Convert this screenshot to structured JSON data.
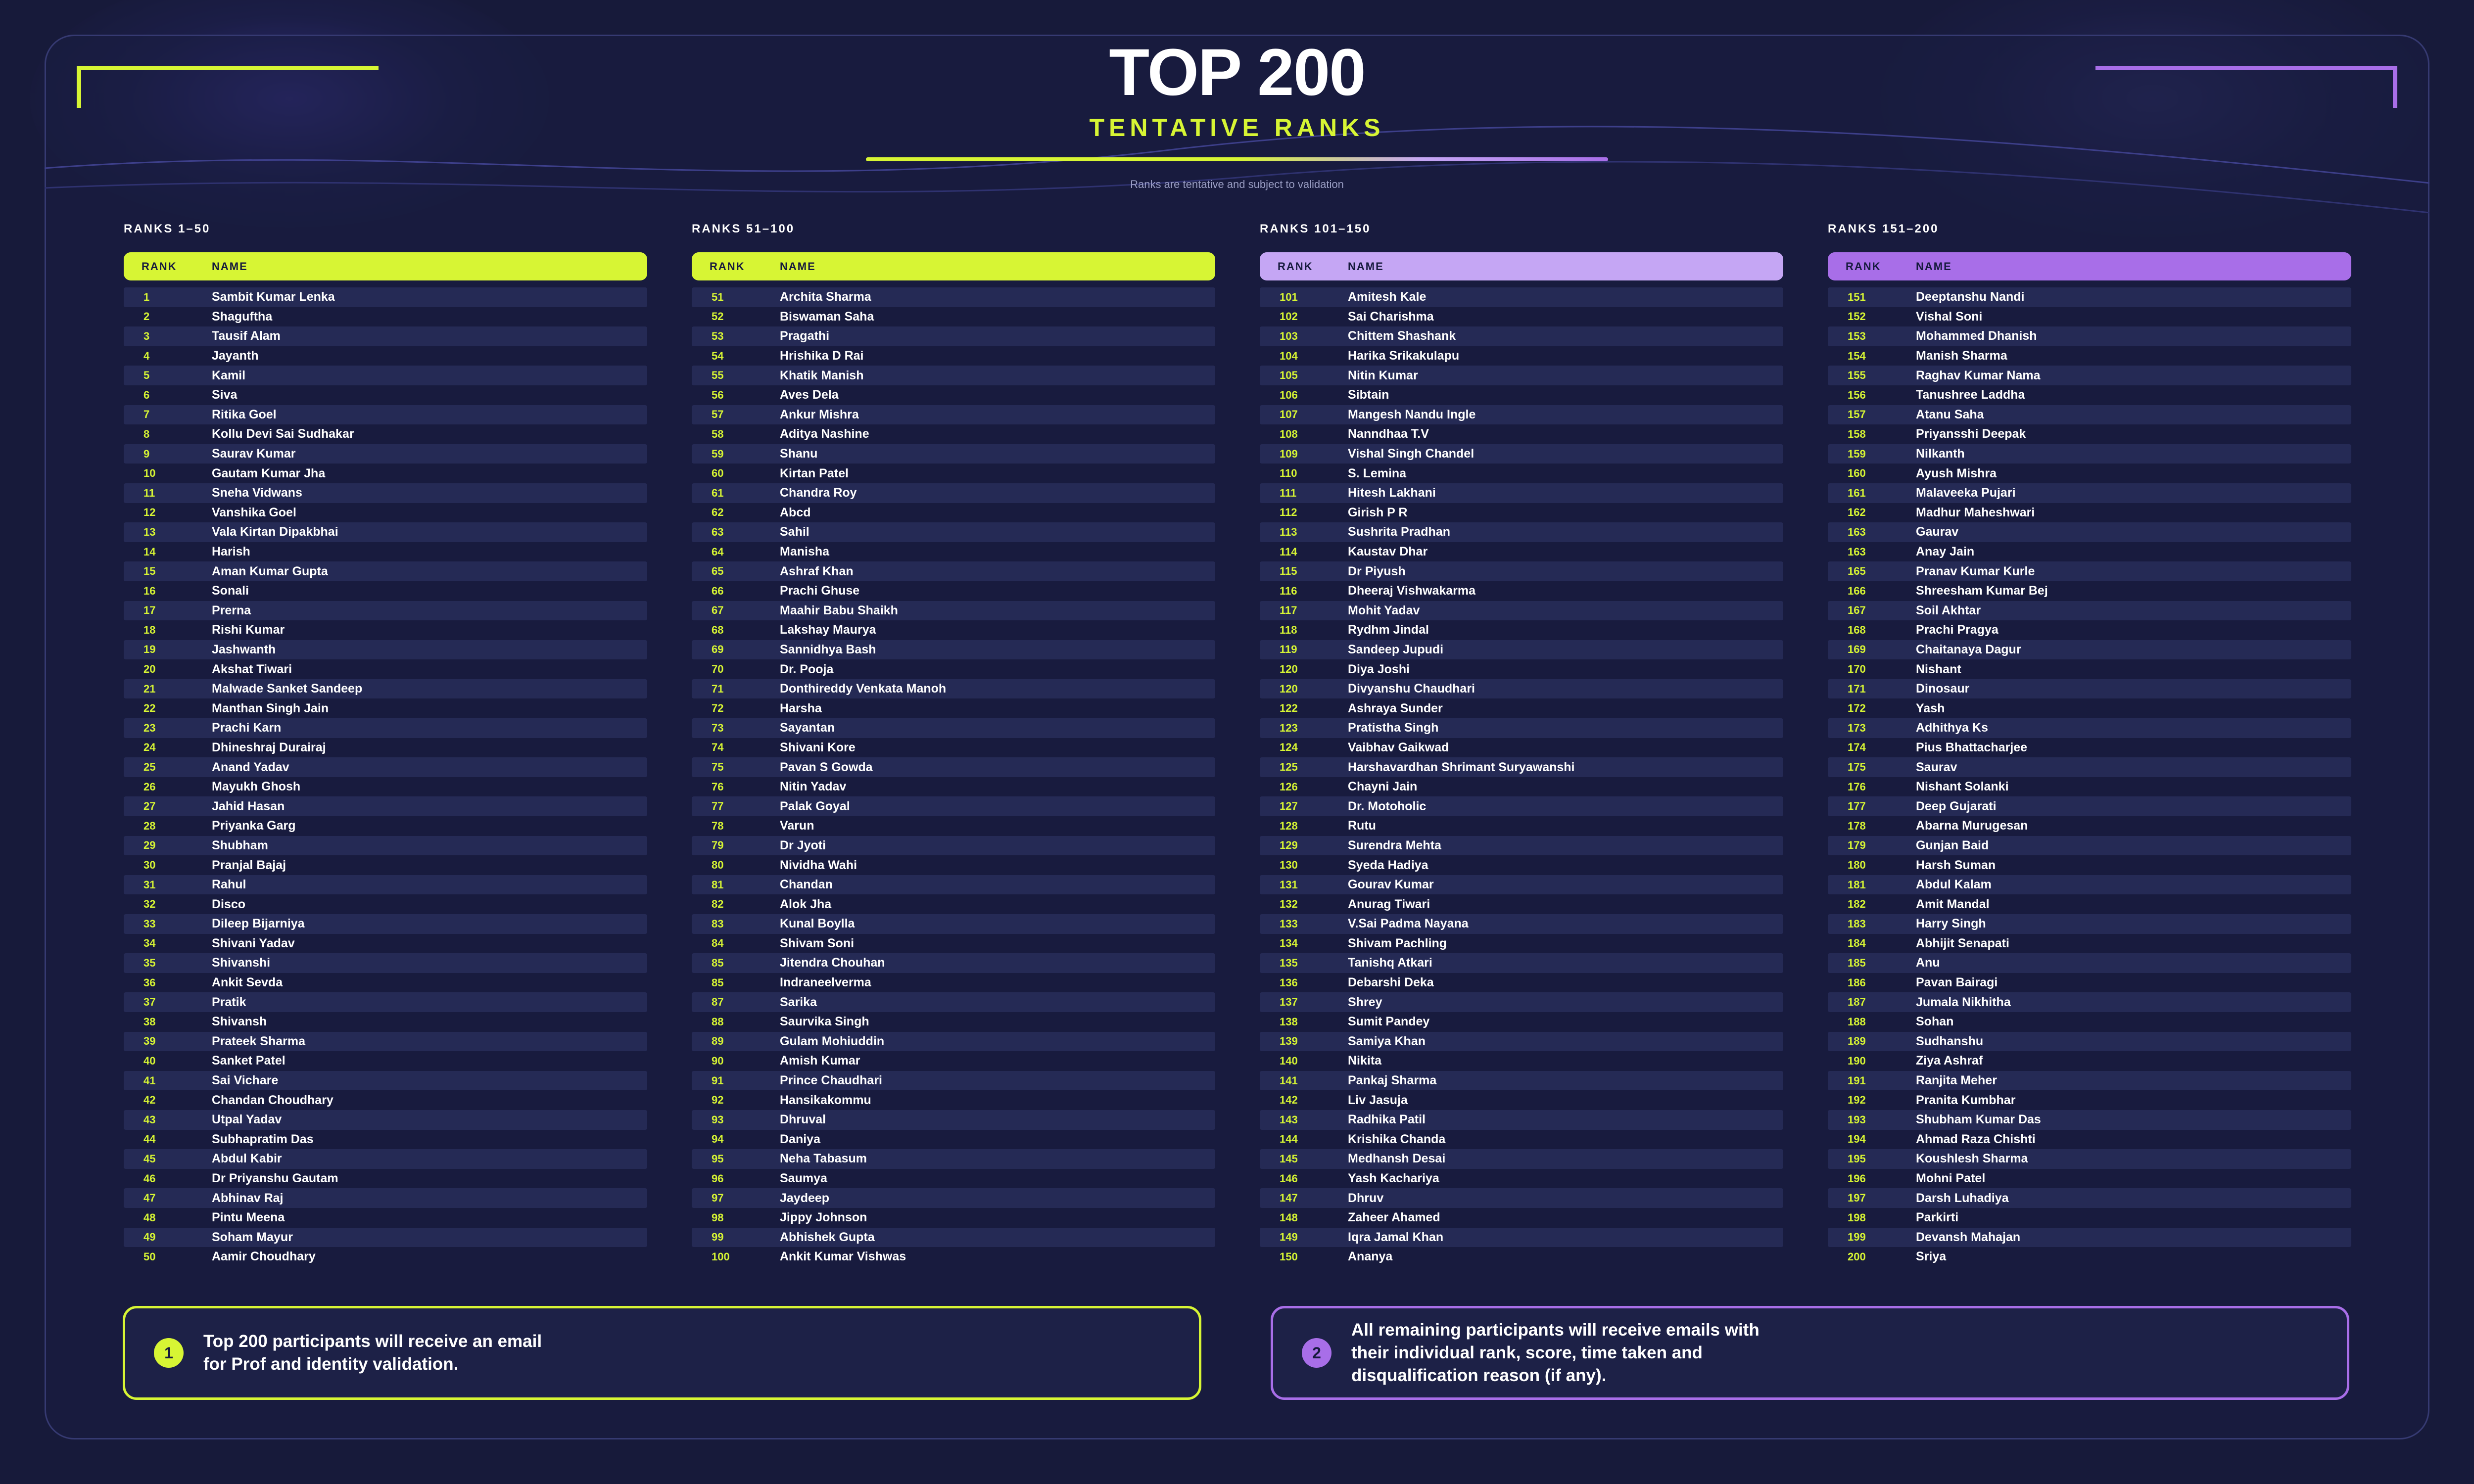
{
  "header": {
    "title": "TOP 200",
    "subtitle": "TENTATIVE RANKS",
    "note": "Ranks are tentative and subject to validation"
  },
  "colors": {
    "lime": "#d7f534",
    "lavender": "#c5a6f4",
    "purple": "#a86ee8",
    "background": "#171a3a"
  },
  "columns": [
    {
      "label": "RANKS 1–50",
      "rank_header": "RANK",
      "name_header": "NAME",
      "header_color": "#d7f534",
      "rows": [
        {
          "rank": "1",
          "name": "Sambit Kumar Lenka"
        },
        {
          "rank": "2",
          "name": "Shaguftha"
        },
        {
          "rank": "3",
          "name": "Tausif Alam"
        },
        {
          "rank": "4",
          "name": "Jayanth"
        },
        {
          "rank": "5",
          "name": "Kamil"
        },
        {
          "rank": "6",
          "name": "Siva"
        },
        {
          "rank": "7",
          "name": "Ritika Goel"
        },
        {
          "rank": "8",
          "name": "Kollu Devi Sai Sudhakar"
        },
        {
          "rank": "9",
          "name": "Saurav Kumar"
        },
        {
          "rank": "10",
          "name": "Gautam Kumar Jha"
        },
        {
          "rank": "11",
          "name": "Sneha Vidwans"
        },
        {
          "rank": "12",
          "name": "Vanshika Goel"
        },
        {
          "rank": "13",
          "name": "Vala Kirtan Dipakbhai"
        },
        {
          "rank": "14",
          "name": "Harish"
        },
        {
          "rank": "15",
          "name": "Aman Kumar Gupta"
        },
        {
          "rank": "16",
          "name": "Sonali"
        },
        {
          "rank": "17",
          "name": "Prerna"
        },
        {
          "rank": "18",
          "name": "Rishi Kumar"
        },
        {
          "rank": "19",
          "name": "Jashwanth"
        },
        {
          "rank": "20",
          "name": "Akshat Tiwari"
        },
        {
          "rank": "21",
          "name": "Malwade Sanket Sandeep"
        },
        {
          "rank": "22",
          "name": "Manthan Singh Jain"
        },
        {
          "rank": "23",
          "name": "Prachi Karn"
        },
        {
          "rank": "24",
          "name": "Dhineshraj Durairaj"
        },
        {
          "rank": "25",
          "name": "Anand Yadav"
        },
        {
          "rank": "26",
          "name": "Mayukh Ghosh"
        },
        {
          "rank": "27",
          "name": "Jahid Hasan"
        },
        {
          "rank": "28",
          "name": "Priyanka Garg"
        },
        {
          "rank": "29",
          "name": "Shubham"
        },
        {
          "rank": "30",
          "name": "Pranjal Bajaj"
        },
        {
          "rank": "31",
          "name": "Rahul"
        },
        {
          "rank": "32",
          "name": "Disco"
        },
        {
          "rank": "33",
          "name": "Dileep Bijarniya"
        },
        {
          "rank": "34",
          "name": "Shivani Yadav"
        },
        {
          "rank": "35",
          "name": "Shivanshi"
        },
        {
          "rank": "36",
          "name": "Ankit Sevda"
        },
        {
          "rank": "37",
          "name": "Pratik"
        },
        {
          "rank": "38",
          "name": "Shivansh"
        },
        {
          "rank": "39",
          "name": "Prateek Sharma"
        },
        {
          "rank": "40",
          "name": "Sanket Patel"
        },
        {
          "rank": "41",
          "name": "Sai Vichare"
        },
        {
          "rank": "42",
          "name": "Chandan Choudhary"
        },
        {
          "rank": "43",
          "name": "Utpal Yadav"
        },
        {
          "rank": "44",
          "name": "Subhapratim Das"
        },
        {
          "rank": "45",
          "name": "Abdul Kabir"
        },
        {
          "rank": "46",
          "name": "Dr Priyanshu Gautam"
        },
        {
          "rank": "47",
          "name": "Abhinav Raj"
        },
        {
          "rank": "48",
          "name": "Pintu Meena"
        },
        {
          "rank": "49",
          "name": "Soham Mayur"
        },
        {
          "rank": "50",
          "name": "Aamir Choudhary"
        }
      ]
    },
    {
      "label": "RANKS 51–100",
      "rank_header": "RANK",
      "name_header": "NAME",
      "header_color": "#d7f534",
      "rows": [
        {
          "rank": "51",
          "name": "Archita Sharma"
        },
        {
          "rank": "52",
          "name": "Biswaman Saha"
        },
        {
          "rank": "53",
          "name": "Pragathi"
        },
        {
          "rank": "54",
          "name": "Hrishika D Rai"
        },
        {
          "rank": "55",
          "name": "Khatik Manish"
        },
        {
          "rank": "56",
          "name": "Aves Dela"
        },
        {
          "rank": "57",
          "name": "Ankur Mishra"
        },
        {
          "rank": "58",
          "name": "Aditya Nashine"
        },
        {
          "rank": "59",
          "name": "Shanu"
        },
        {
          "rank": "60",
          "name": "Kirtan Patel"
        },
        {
          "rank": "61",
          "name": "Chandra Roy"
        },
        {
          "rank": "62",
          "name": "Abcd"
        },
        {
          "rank": "63",
          "name": "Sahil"
        },
        {
          "rank": "64",
          "name": "Manisha"
        },
        {
          "rank": "65",
          "name": "Ashraf Khan"
        },
        {
          "rank": "66",
          "name": "Prachi Ghuse"
        },
        {
          "rank": "67",
          "name": "Maahir Babu Shaikh"
        },
        {
          "rank": "68",
          "name": "Lakshay Maurya"
        },
        {
          "rank": "69",
          "name": "Sannidhya Bash"
        },
        {
          "rank": "70",
          "name": "Dr. Pooja"
        },
        {
          "rank": "71",
          "name": "Donthireddy Venkata Manoh"
        },
        {
          "rank": "72",
          "name": "Harsha"
        },
        {
          "rank": "73",
          "name": "Sayantan"
        },
        {
          "rank": "74",
          "name": "Shivani Kore"
        },
        {
          "rank": "75",
          "name": "Pavan S Gowda"
        },
        {
          "rank": "76",
          "name": "Nitin Yadav"
        },
        {
          "rank": "77",
          "name": "Palak Goyal"
        },
        {
          "rank": "78",
          "name": "Varun"
        },
        {
          "rank": "79",
          "name": "Dr Jyoti"
        },
        {
          "rank": "80",
          "name": "Nividha Wahi"
        },
        {
          "rank": "81",
          "name": "Chandan"
        },
        {
          "rank": "82",
          "name": "Alok Jha"
        },
        {
          "rank": "83",
          "name": "Kunal Boylla"
        },
        {
          "rank": "84",
          "name": "Shivam Soni"
        },
        {
          "rank": "85",
          "name": "Jitendra Chouhan"
        },
        {
          "rank": "85",
          "name": "Indraneelverma"
        },
        {
          "rank": "87",
          "name": "Sarika"
        },
        {
          "rank": "88",
          "name": "Saurvika Singh"
        },
        {
          "rank": "89",
          "name": "Gulam Mohiuddin"
        },
        {
          "rank": "90",
          "name": "Amish Kumar"
        },
        {
          "rank": "91",
          "name": "Prince Chaudhari"
        },
        {
          "rank": "92",
          "name": "Hansikakommu"
        },
        {
          "rank": "93",
          "name": "Dhruval"
        },
        {
          "rank": "94",
          "name": "Daniya"
        },
        {
          "rank": "95",
          "name": "Neha Tabasum"
        },
        {
          "rank": "96",
          "name": "Saumya"
        },
        {
          "rank": "97",
          "name": "Jaydeep"
        },
        {
          "rank": "98",
          "name": "Jippy Johnson"
        },
        {
          "rank": "99",
          "name": "Abhishek Gupta"
        },
        {
          "rank": "100",
          "name": "Ankit Kumar Vishwas"
        }
      ]
    },
    {
      "label": "RANKS 101–150",
      "rank_header": "RANK",
      "name_header": "NAME",
      "header_color": "#c5a6f4",
      "rows": [
        {
          "rank": "101",
          "name": "Amitesh Kale"
        },
        {
          "rank": "102",
          "name": "Sai Charishma"
        },
        {
          "rank": "103",
          "name": "Chittem Shashank"
        },
        {
          "rank": "104",
          "name": "Harika Srikakulapu"
        },
        {
          "rank": "105",
          "name": "Nitin Kumar"
        },
        {
          "rank": "106",
          "name": "Sibtain"
        },
        {
          "rank": "107",
          "name": "Mangesh Nandu Ingle"
        },
        {
          "rank": "108",
          "name": "Nanndhaa T.V"
        },
        {
          "rank": "109",
          "name": "Vishal Singh Chandel"
        },
        {
          "rank": "110",
          "name": "S. Lemina"
        },
        {
          "rank": "111",
          "name": "Hitesh Lakhani"
        },
        {
          "rank": "112",
          "name": "Girish P R"
        },
        {
          "rank": "113",
          "name": "Sushrita Pradhan"
        },
        {
          "rank": "114",
          "name": "Kaustav Dhar"
        },
        {
          "rank": "115",
          "name": "Dr Piyush"
        },
        {
          "rank": "116",
          "name": "Dheeraj Vishwakarma"
        },
        {
          "rank": "117",
          "name": "Mohit Yadav"
        },
        {
          "rank": "118",
          "name": "Rydhm Jindal"
        },
        {
          "rank": "119",
          "name": "Sandeep Jupudi"
        },
        {
          "rank": "120",
          "name": "Diya Joshi"
        },
        {
          "rank": "120",
          "name": "Divyanshu Chaudhari"
        },
        {
          "rank": "122",
          "name": "Ashraya Sunder"
        },
        {
          "rank": "123",
          "name": "Pratistha Singh"
        },
        {
          "rank": "124",
          "name": "Vaibhav Gaikwad"
        },
        {
          "rank": "125",
          "name": "Harshavardhan Shrimant Suryawanshi"
        },
        {
          "rank": "126",
          "name": "Chayni Jain"
        },
        {
          "rank": "127",
          "name": "Dr. Motoholic"
        },
        {
          "rank": "128",
          "name": "Rutu"
        },
        {
          "rank": "129",
          "name": "Surendra Mehta"
        },
        {
          "rank": "130",
          "name": "Syeda Hadiya"
        },
        {
          "rank": "131",
          "name": "Gourav Kumar"
        },
        {
          "rank": "132",
          "name": "Anurag Tiwari"
        },
        {
          "rank": "133",
          "name": "V.Sai Padma Nayana"
        },
        {
          "rank": "134",
          "name": "Shivam Pachling"
        },
        {
          "rank": "135",
          "name": "Tanishq Atkari"
        },
        {
          "rank": "136",
          "name": "Debarshi Deka"
        },
        {
          "rank": "137",
          "name": "Shrey"
        },
        {
          "rank": "138",
          "name": "Sumit Pandey"
        },
        {
          "rank": "139",
          "name": "Samiya Khan"
        },
        {
          "rank": "140",
          "name": "Nikita"
        },
        {
          "rank": "141",
          "name": "Pankaj Sharma"
        },
        {
          "rank": "142",
          "name": "Liv Jasuja"
        },
        {
          "rank": "143",
          "name": "Radhika Patil"
        },
        {
          "rank": "144",
          "name": "Krishika Chanda"
        },
        {
          "rank": "145",
          "name": "Medhansh Desai"
        },
        {
          "rank": "146",
          "name": "Yash Kachariya"
        },
        {
          "rank": "147",
          "name": "Dhruv"
        },
        {
          "rank": "148",
          "name": "Zaheer Ahamed"
        },
        {
          "rank": "149",
          "name": "Iqra Jamal Khan"
        },
        {
          "rank": "150",
          "name": "Ananya"
        }
      ]
    },
    {
      "label": "RANKS 151–200",
      "rank_header": "RANK",
      "name_header": "NAME",
      "header_color": "#a86ee8",
      "rows": [
        {
          "rank": "151",
          "name": "Deeptanshu Nandi"
        },
        {
          "rank": "152",
          "name": "Vishal Soni"
        },
        {
          "rank": "153",
          "name": "Mohammed Dhanish"
        },
        {
          "rank": "154",
          "name": "Manish Sharma"
        },
        {
          "rank": "155",
          "name": "Raghav Kumar Nama"
        },
        {
          "rank": "156",
          "name": "Tanushree Laddha"
        },
        {
          "rank": "157",
          "name": "Atanu Saha"
        },
        {
          "rank": "158",
          "name": "Priyansshi Deepak"
        },
        {
          "rank": "159",
          "name": "Nilkanth"
        },
        {
          "rank": "160",
          "name": "Ayush Mishra"
        },
        {
          "rank": "161",
          "name": "Malaveeka Pujari"
        },
        {
          "rank": "162",
          "name": "Madhur Maheshwari"
        },
        {
          "rank": "163",
          "name": "Gaurav"
        },
        {
          "rank": "163",
          "name": "Anay Jain"
        },
        {
          "rank": "165",
          "name": "Pranav Kumar Kurle"
        },
        {
          "rank": "166",
          "name": "Shreesham Kumar Bej"
        },
        {
          "rank": "167",
          "name": "Soil Akhtar"
        },
        {
          "rank": "168",
          "name": "Prachi Pragya"
        },
        {
          "rank": "169",
          "name": "Chaitanaya Dagur"
        },
        {
          "rank": "170",
          "name": "Nishant"
        },
        {
          "rank": "171",
          "name": "Dinosaur"
        },
        {
          "rank": "172",
          "name": "Yash"
        },
        {
          "rank": "173",
          "name": "Adhithya Ks"
        },
        {
          "rank": "174",
          "name": "Pius Bhattacharjee"
        },
        {
          "rank": "175",
          "name": "Saurav"
        },
        {
          "rank": "176",
          "name": "Nishant Solanki"
        },
        {
          "rank": "177",
          "name": "Deep Gujarati"
        },
        {
          "rank": "178",
          "name": "Abarna Murugesan"
        },
        {
          "rank": "179",
          "name": "Gunjan Baid"
        },
        {
          "rank": "180",
          "name": "Harsh Suman"
        },
        {
          "rank": "181",
          "name": "Abdul Kalam"
        },
        {
          "rank": "182",
          "name": "Amit Mandal"
        },
        {
          "rank": "183",
          "name": "Harry Singh"
        },
        {
          "rank": "184",
          "name": "Abhijit Senapati"
        },
        {
          "rank": "185",
          "name": "Anu"
        },
        {
          "rank": "186",
          "name": "Pavan Bairagi"
        },
        {
          "rank": "187",
          "name": "Jumala Nikhitha"
        },
        {
          "rank": "188",
          "name": "Sohan"
        },
        {
          "rank": "189",
          "name": "Sudhanshu"
        },
        {
          "rank": "190",
          "name": "Ziya Ashraf"
        },
        {
          "rank": "191",
          "name": "Ranjita Meher"
        },
        {
          "rank": "192",
          "name": "Pranita Kumbhar"
        },
        {
          "rank": "193",
          "name": "Shubham Kumar Das"
        },
        {
          "rank": "194",
          "name": "Ahmad Raza Chishti"
        },
        {
          "rank": "195",
          "name": "Koushlesh Sharma"
        },
        {
          "rank": "196",
          "name": "Mohni Patel"
        },
        {
          "rank": "197",
          "name": "Darsh Luhadiya"
        },
        {
          "rank": "198",
          "name": "Parkirti"
        },
        {
          "rank": "199",
          "name": "Devansh Mahajan"
        },
        {
          "rank": "200",
          "name": "Sriya"
        }
      ]
    }
  ],
  "info_cards": [
    {
      "number": "1",
      "text": "Top 200 participants will receive an email for Prof and identity validation.",
      "accent": "#d7f534"
    },
    {
      "number": "2",
      "text": "All remaining participants will receive emails with their individual rank, score, time taken and disqualification reason (if any).",
      "accent": "#a86ee8"
    }
  ]
}
